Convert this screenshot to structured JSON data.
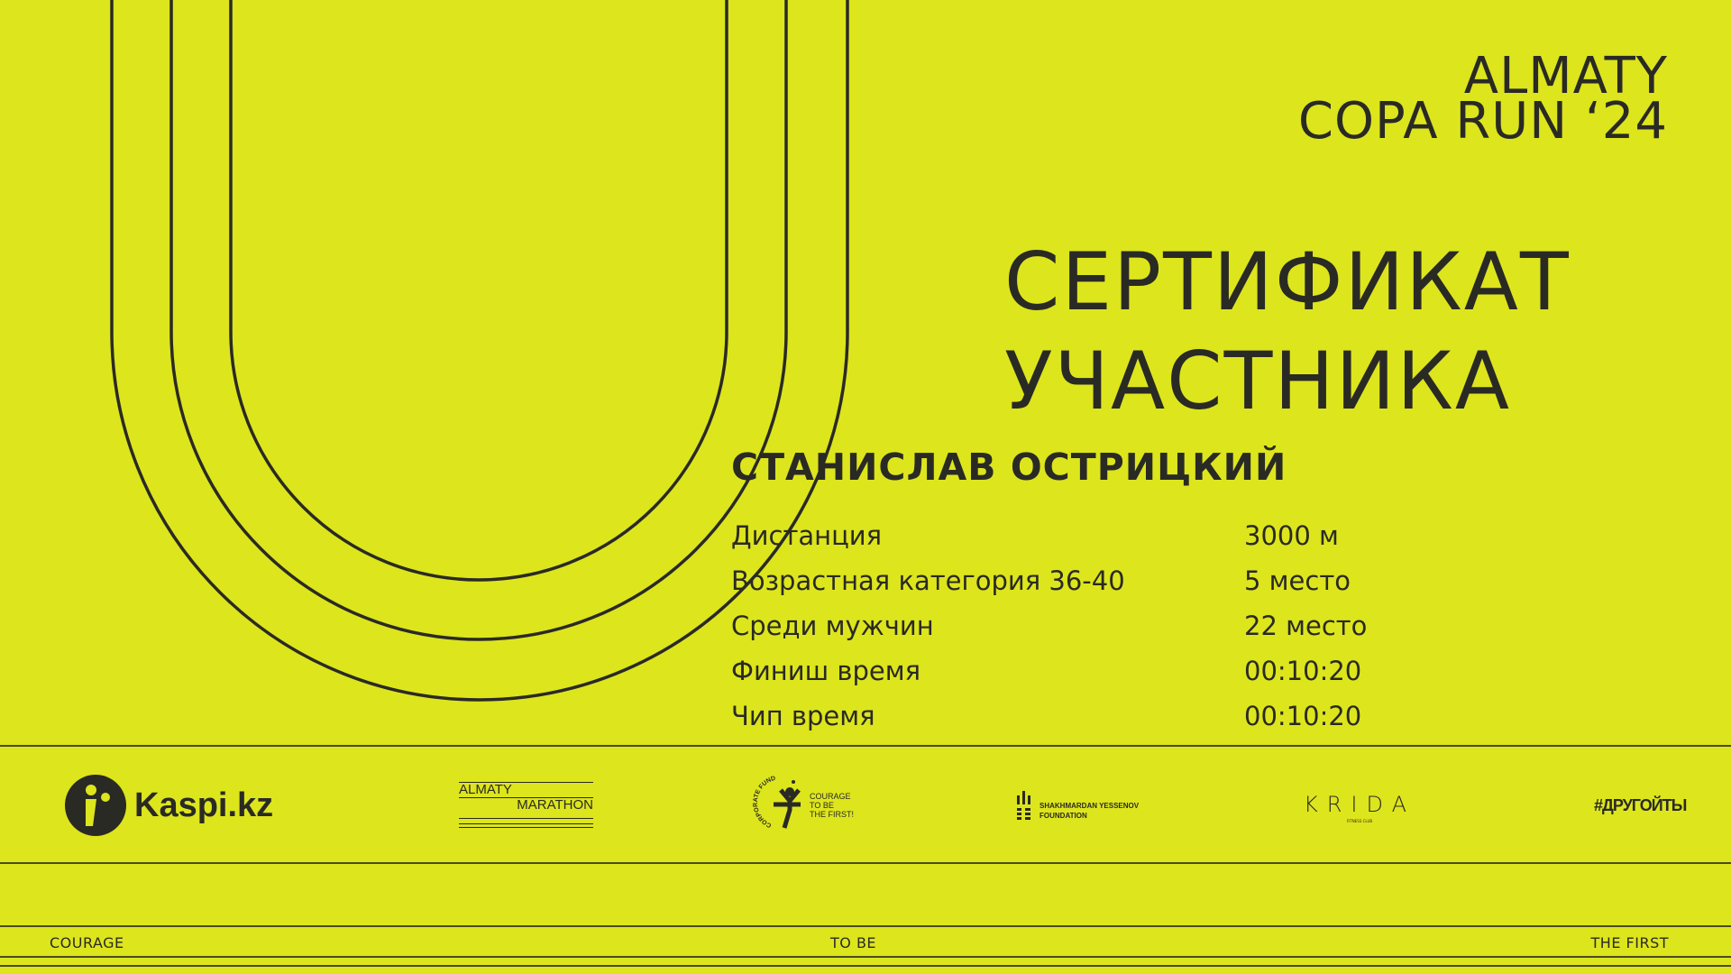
{
  "event": {
    "line1": "ALMATY",
    "line2": "COPA RUN ‘24"
  },
  "certificate": {
    "line1": "СЕРТИФИКАТ",
    "line2": "УЧАСТНИКА"
  },
  "participant": {
    "name": "СТАНИСЛАВ ОСТРИЦКИЙ"
  },
  "results": [
    {
      "label": "Дистанция",
      "value": "3000 м"
    },
    {
      "label": "Возрастная категория 36-40",
      "value": "5 место"
    },
    {
      "label": "Среди мужчин",
      "value": "22 место"
    },
    {
      "label": "Финиш время",
      "value": "00:10:20"
    },
    {
      "label": "Чип время",
      "value": "00:10:20"
    }
  ],
  "sponsors": {
    "kaspi": "Kaspi.kz",
    "almaty_marathon": {
      "line1": "ALMATY",
      "line2": "MARATHON"
    },
    "courage_fund": {
      "arc": "CORPORATE FUND",
      "line1": "COURAGE",
      "line2": "TO BE",
      "line3": "THE FIRST!"
    },
    "yessenov": {
      "line1": "SHAKHMARDAN YESSENOV",
      "line2": "FOUNDATION"
    },
    "krida": {
      "name": "KRIDA",
      "sub": "FITNESS CLUB"
    },
    "hashtag": "#ДРУГОЙТЫ"
  },
  "footer": {
    "left": "COURAGE",
    "center": "TO BE",
    "right": "THE FIRST"
  },
  "colors": {
    "background": "#dde51d",
    "ink": "#2a2a24"
  }
}
